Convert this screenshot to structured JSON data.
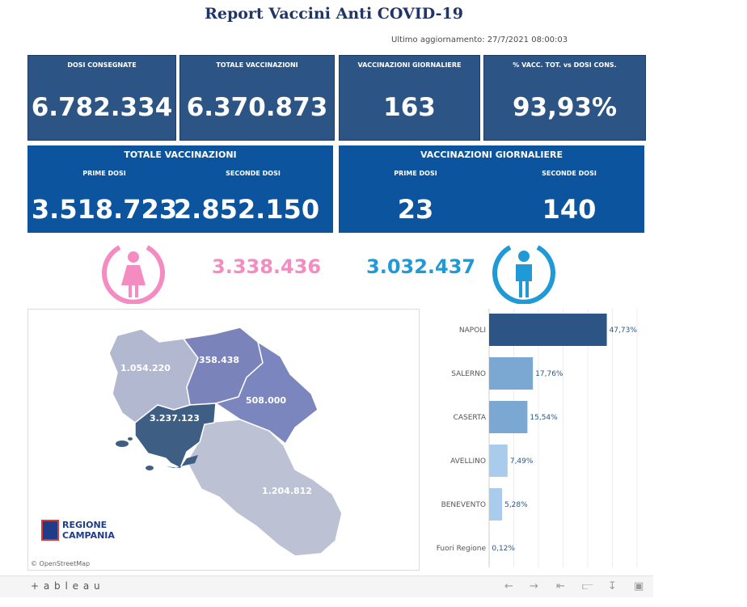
{
  "title": "Report Vaccini Anti COVID-19",
  "updated": "Ultimo aggiornamento: 27/7/2021 08:00:03",
  "kpis": [
    {
      "label": "DOSI  CONSEGNATE",
      "value": "6.782.334"
    },
    {
      "label": "TOTALE VACCINAZIONI",
      "value": "6.370.873"
    },
    {
      "label": "VACCINAZIONI GIORNALIERE",
      "value": "163"
    },
    {
      "label": "% VACC. TOT. vs DOSI CONS.",
      "value": "93,93%"
    }
  ],
  "panels": [
    {
      "title": "TOTALE VACCINAZIONI",
      "sub1": "PRIME DOSI",
      "val1": "3.518.723",
      "sub2": "SECONDE DOSI",
      "val2": "2.852.150"
    },
    {
      "title": "VACCINAZIONI GIORNALIERE",
      "sub1": "PRIME DOSI",
      "val1": "23",
      "sub2": "SECONDE DOSI",
      "val2": "140"
    }
  ],
  "gender": {
    "female_value": "3.338.436",
    "female_color": "#f48cc2",
    "female_icon": "female-icon",
    "male_value": "3.032.437",
    "male_color": "#1f9ad6",
    "male_icon": "male-icon"
  },
  "map": {
    "labels": {
      "caserta": "1.054.220",
      "benevento": "358.438",
      "avellino": "508.000",
      "napoli": "3.237.123",
      "salerno": "1.204.812"
    },
    "logo_line1": "REGIONE",
    "logo_line2": "CAMPANIA",
    "attribution": "© OpenStreetMap"
  },
  "chart_data": {
    "type": "bar",
    "orientation": "horizontal",
    "categories": [
      "NAPOLI",
      "SALERNO",
      "CASERTA",
      "AVELLINO",
      "BENEVENTO",
      "Fuori Regione"
    ],
    "values": [
      47.73,
      17.76,
      15.54,
      7.49,
      5.28,
      0.12
    ],
    "value_labels": [
      "47,73%",
      "17,76%",
      "15,54%",
      "7,49%",
      "5,28%",
      "0,12%"
    ],
    "colors": [
      "#2c5585",
      "#7ba7d3",
      "#7ba7d3",
      "#a9cbec",
      "#a9cbec",
      "#a9cbec"
    ],
    "xlim": [
      0,
      60
    ],
    "grid": true
  },
  "footer": {
    "brand": "+ a b l e a u",
    "icons": [
      "undo-icon",
      "redo-icon",
      "revert-icon",
      "share-icon",
      "download-icon",
      "fullscreen-icon"
    ]
  }
}
